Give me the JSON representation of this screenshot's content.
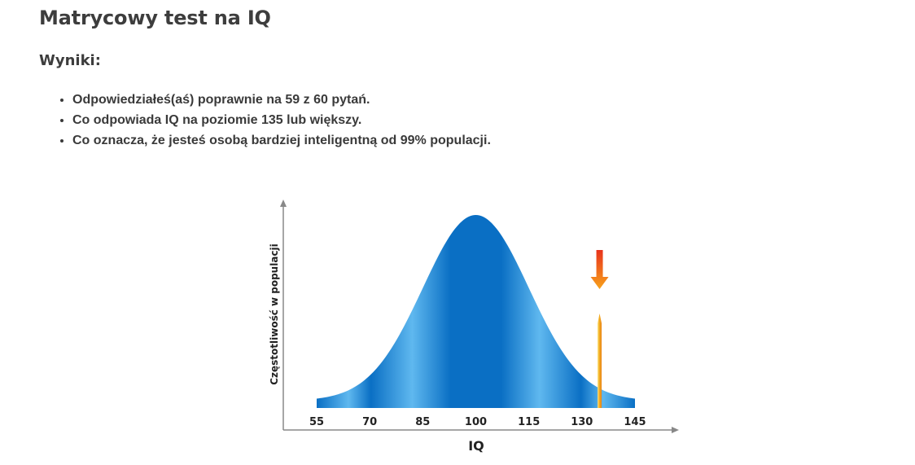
{
  "page": {
    "title": "Matrycowy test na IQ",
    "results_heading": "Wyniki:",
    "results": [
      "Odpowiedziałeś(aś) poprawnie na 59 z 60 pytań.",
      "Co odpowiada IQ na poziomie 135 lub większy.",
      "Co oznacza, że jesteś osobą bardziej inteligentną od 99% populacji."
    ]
  },
  "chart_data": {
    "type": "area",
    "title": "",
    "xlabel": "IQ",
    "ylabel": "Częstotliwość w populacji",
    "x_ticks": [
      "55",
      "70",
      "85",
      "100",
      "115",
      "130",
      "145"
    ],
    "xlim": [
      55,
      145
    ],
    "distribution": {
      "mean": 100,
      "sd": 15
    },
    "marker": {
      "iq": 135,
      "arrow_direction": "down"
    },
    "grid": false,
    "legend": "none",
    "colors": {
      "curve_dark": "#0a6fc4",
      "curve_light": "#5fb8ef",
      "marker_line": "#f2a81d",
      "arrow_top": "#e8331c",
      "arrow_bottom": "#f7a21b",
      "axis": "#888888"
    }
  }
}
